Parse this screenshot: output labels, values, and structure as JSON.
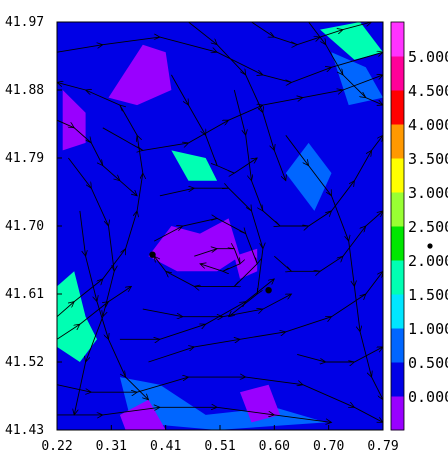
{
  "chart_data": {
    "type": "heatmap",
    "title": "",
    "xlabel": "",
    "ylabel": "",
    "x_ticks": [
      "0.22",
      "0.31",
      "0.41",
      "0.51",
      "0.60",
      "0.70",
      "0.79"
    ],
    "y_ticks": [
      "41.97",
      "41.88",
      "41.79",
      "41.70",
      "41.61",
      "41.52",
      "41.43"
    ],
    "xlim": [
      0.22,
      0.79
    ],
    "ylim": [
      41.43,
      41.97
    ],
    "grid": false,
    "legend": "colorbar-right",
    "colorbar": {
      "levels": [
        0.0,
        0.5,
        1.0,
        1.5,
        2.0,
        2.5,
        3.0,
        3.5,
        4.0,
        4.5,
        5.0
      ],
      "tick_labels": [
        "0.000",
        "0.500",
        "1.000",
        "1.500",
        "2.000",
        "2.500",
        "3.000",
        "3.500",
        "4.000",
        "4.500",
        "5.000"
      ],
      "colors": [
        "#9900ff",
        "#0000e6",
        "#0066ff",
        "#00e6ff",
        "#00ffb3",
        "#00e600",
        "#99ff33",
        "#ffff00",
        "#ff9900",
        "#ff0000",
        "#ff0099",
        "#ff33ff"
      ]
    },
    "contour_fill": {
      "background_level": 1,
      "regions": [
        {
          "level": 1,
          "polygon": [
            [
              0.23,
              41.97
            ],
            [
              0.58,
              41.97
            ],
            [
              0.55,
              41.9
            ],
            [
              0.47,
              41.82
            ],
            [
              0.36,
              41.87
            ],
            [
              0.28,
              41.86
            ],
            [
              0.22,
              41.92
            ]
          ]
        },
        {
          "level": 0,
          "polygon": [
            [
              0.31,
              41.87
            ],
            [
              0.37,
              41.94
            ],
            [
              0.41,
              41.93
            ],
            [
              0.42,
              41.88
            ],
            [
              0.36,
              41.86
            ]
          ]
        },
        {
          "level": 0,
          "polygon": [
            [
              0.23,
              41.88
            ],
            [
              0.27,
              41.85
            ],
            [
              0.27,
              41.81
            ],
            [
              0.23,
              41.8
            ]
          ]
        },
        {
          "level": 1,
          "polygon": [
            [
              0.36,
              41.78
            ],
            [
              0.45,
              41.73
            ],
            [
              0.51,
              41.74
            ],
            [
              0.53,
              41.7
            ],
            [
              0.45,
              41.68
            ],
            [
              0.38,
              41.69
            ],
            [
              0.33,
              41.72
            ]
          ]
        },
        {
          "level": 0,
          "polygon": [
            [
              0.38,
              41.66
            ],
            [
              0.42,
              41.7
            ],
            [
              0.47,
              41.69
            ],
            [
              0.52,
              41.71
            ],
            [
              0.54,
              41.66
            ],
            [
              0.5,
              41.64
            ],
            [
              0.43,
              41.64
            ]
          ]
        },
        {
          "level": 0,
          "polygon": [
            [
              0.53,
              41.66
            ],
            [
              0.57,
              41.67
            ],
            [
              0.57,
              41.64
            ],
            [
              0.54,
              41.63
            ]
          ]
        },
        {
          "level": 1,
          "polygon": [
            [
              0.62,
              41.66
            ],
            [
              0.7,
              41.67
            ],
            [
              0.73,
              41.62
            ],
            [
              0.7,
              41.58
            ],
            [
              0.64,
              41.59
            ]
          ]
        },
        {
          "level": 1,
          "polygon": [
            [
              0.22,
              41.61
            ],
            [
              0.27,
              41.66
            ],
            [
              0.3,
              41.6
            ],
            [
              0.29,
              41.54
            ],
            [
              0.22,
              41.5
            ]
          ]
        },
        {
          "level": 4,
          "polygon": [
            [
              0.22,
              41.62
            ],
            [
              0.25,
              41.64
            ],
            [
              0.27,
              41.58
            ],
            [
              0.29,
              41.55
            ],
            [
              0.26,
              41.52
            ],
            [
              0.22,
              41.54
            ]
          ]
        },
        {
          "level": 4,
          "polygon": [
            [
              0.42,
              41.8
            ],
            [
              0.48,
              41.79
            ],
            [
              0.5,
              41.76
            ],
            [
              0.45,
              41.76
            ]
          ]
        },
        {
          "level": 4,
          "polygon": [
            [
              0.68,
              41.96
            ],
            [
              0.75,
              41.97
            ],
            [
              0.79,
              41.93
            ],
            [
              0.74,
              41.92
            ]
          ]
        },
        {
          "level": 1,
          "polygon": [
            [
              0.22,
              41.52
            ],
            [
              0.34,
              41.49
            ],
            [
              0.42,
              41.5
            ],
            [
              0.5,
              41.47
            ],
            [
              0.56,
              41.5
            ],
            [
              0.66,
              41.48
            ],
            [
              0.76,
              41.44
            ],
            [
              0.79,
              41.43
            ],
            [
              0.22,
              41.43
            ]
          ]
        },
        {
          "level": 2,
          "polygon": [
            [
              0.33,
              41.5
            ],
            [
              0.4,
              41.49
            ],
            [
              0.48,
              41.45
            ],
            [
              0.6,
              41.46
            ],
            [
              0.69,
              41.44
            ],
            [
              0.5,
              41.43
            ],
            [
              0.35,
              41.44
            ]
          ]
        },
        {
          "level": 2,
          "polygon": [
            [
              0.62,
              41.77
            ],
            [
              0.66,
              41.81
            ],
            [
              0.7,
              41.77
            ],
            [
              0.67,
              41.72
            ]
          ]
        },
        {
          "level": 2,
          "polygon": [
            [
              0.7,
              41.93
            ],
            [
              0.76,
              41.91
            ],
            [
              0.79,
              41.87
            ],
            [
              0.73,
              41.86
            ]
          ]
        },
        {
          "level": 0,
          "polygon": [
            [
              0.33,
              41.45
            ],
            [
              0.38,
              41.47
            ],
            [
              0.41,
              41.43
            ],
            [
              0.34,
              41.43
            ]
          ]
        },
        {
          "level": 0,
          "polygon": [
            [
              0.54,
              41.48
            ],
            [
              0.59,
              41.49
            ],
            [
              0.61,
              41.45
            ],
            [
              0.56,
              41.44
            ]
          ]
        },
        {
          "level": 1,
          "polygon": [
            [
              0.72,
              41.82
            ],
            [
              0.79,
              41.84
            ],
            [
              0.79,
              41.72
            ],
            [
              0.74,
              41.74
            ]
          ]
        }
      ]
    },
    "markers": [
      {
        "x": 0.387,
        "y": 41.662
      },
      {
        "x": 0.59,
        "y": 41.615
      }
    ],
    "streamlines": [
      [
        [
          0.22,
          41.58
        ],
        [
          0.25,
          41.6
        ],
        [
          0.3,
          41.63
        ],
        [
          0.34,
          41.67
        ],
        [
          0.36,
          41.72
        ],
        [
          0.37,
          41.77
        ],
        [
          0.36,
          41.82
        ],
        [
          0.33,
          41.86
        ],
        [
          0.27,
          41.88
        ],
        [
          0.22,
          41.89
        ]
      ],
      [
        [
          0.22,
          41.55
        ],
        [
          0.26,
          41.57
        ],
        [
          0.31,
          41.6
        ],
        [
          0.35,
          41.62
        ]
      ],
      [
        [
          0.22,
          41.49
        ],
        [
          0.28,
          41.48
        ],
        [
          0.36,
          41.48
        ],
        [
          0.45,
          41.5
        ],
        [
          0.55,
          41.5
        ],
        [
          0.65,
          41.49
        ],
        [
          0.74,
          41.46
        ],
        [
          0.79,
          41.44
        ]
      ],
      [
        [
          0.22,
          41.45
        ],
        [
          0.3,
          41.45
        ],
        [
          0.4,
          41.46
        ],
        [
          0.5,
          41.46
        ],
        [
          0.6,
          41.45
        ],
        [
          0.7,
          41.44
        ]
      ],
      [
        [
          0.38,
          41.52
        ],
        [
          0.46,
          41.54
        ],
        [
          0.54,
          41.55
        ],
        [
          0.62,
          41.56
        ],
        [
          0.7,
          41.58
        ],
        [
          0.76,
          41.61
        ],
        [
          0.79,
          41.64
        ]
      ],
      [
        [
          0.37,
          41.59
        ],
        [
          0.44,
          41.58
        ],
        [
          0.51,
          41.58
        ],
        [
          0.58,
          41.59
        ],
        [
          0.63,
          41.61
        ]
      ],
      [
        [
          0.39,
          41.68
        ],
        [
          0.44,
          41.7
        ],
        [
          0.5,
          41.71
        ],
        [
          0.55,
          41.69
        ],
        [
          0.57,
          41.65
        ],
        [
          0.53,
          41.62
        ],
        [
          0.46,
          41.62
        ],
        [
          0.41,
          41.64
        ],
        [
          0.39,
          41.66
        ]
      ],
      [
        [
          0.4,
          41.74
        ],
        [
          0.46,
          41.75
        ],
        [
          0.52,
          41.75
        ],
        [
          0.56,
          41.72
        ],
        [
          0.58,
          41.67
        ],
        [
          0.57,
          41.61
        ],
        [
          0.52,
          41.58
        ]
      ],
      [
        [
          0.22,
          41.93
        ],
        [
          0.3,
          41.94
        ],
        [
          0.4,
          41.95
        ],
        [
          0.5,
          41.93
        ],
        [
          0.58,
          41.9
        ],
        [
          0.63,
          41.89
        ],
        [
          0.7,
          41.91
        ],
        [
          0.79,
          41.93
        ]
      ],
      [
        [
          0.3,
          41.83
        ],
        [
          0.37,
          41.8
        ],
        [
          0.45,
          41.81
        ],
        [
          0.52,
          41.84
        ],
        [
          0.58,
          41.86
        ],
        [
          0.65,
          41.87
        ],
        [
          0.72,
          41.88
        ],
        [
          0.79,
          41.9
        ]
      ],
      [
        [
          0.24,
          41.79
        ],
        [
          0.28,
          41.75
        ],
        [
          0.31,
          41.7
        ],
        [
          0.32,
          41.64
        ],
        [
          0.3,
          41.58
        ],
        [
          0.27,
          41.52
        ],
        [
          0.25,
          41.45
        ]
      ],
      [
        [
          0.53,
          41.88
        ],
        [
          0.55,
          41.82
        ],
        [
          0.56,
          41.76
        ],
        [
          0.58,
          41.72
        ],
        [
          0.61,
          41.7
        ],
        [
          0.66,
          41.7
        ],
        [
          0.7,
          41.72
        ],
        [
          0.74,
          41.76
        ],
        [
          0.77,
          41.8
        ],
        [
          0.79,
          41.82
        ]
      ],
      [
        [
          0.6,
          41.66
        ],
        [
          0.63,
          41.64
        ],
        [
          0.68,
          41.64
        ],
        [
          0.72,
          41.66
        ],
        [
          0.76,
          41.7
        ],
        [
          0.79,
          41.72
        ]
      ],
      [
        [
          0.62,
          41.82
        ],
        [
          0.66,
          41.78
        ],
        [
          0.7,
          41.74
        ],
        [
          0.73,
          41.68
        ],
        [
          0.74,
          41.62
        ],
        [
          0.75,
          41.56
        ],
        [
          0.77,
          41.5
        ],
        [
          0.79,
          41.47
        ]
      ],
      [
        [
          0.45,
          41.97
        ],
        [
          0.5,
          41.94
        ],
        [
          0.55,
          41.9
        ],
        [
          0.58,
          41.85
        ],
        [
          0.6,
          41.8
        ],
        [
          0.62,
          41.76
        ]
      ],
      [
        [
          0.66,
          41.97
        ],
        [
          0.69,
          41.94
        ],
        [
          0.72,
          41.9
        ],
        [
          0.76,
          41.87
        ],
        [
          0.79,
          41.86
        ]
      ],
      [
        [
          0.26,
          41.72
        ],
        [
          0.27,
          41.66
        ],
        [
          0.29,
          41.6
        ],
        [
          0.31,
          41.55
        ],
        [
          0.34,
          41.5
        ],
        [
          0.38,
          41.47
        ]
      ],
      [
        [
          0.42,
          41.9
        ],
        [
          0.45,
          41.86
        ],
        [
          0.48,
          41.82
        ],
        [
          0.5,
          41.78
        ],
        [
          0.53,
          41.77
        ],
        [
          0.57,
          41.79
        ]
      ],
      [
        [
          0.33,
          41.55
        ],
        [
          0.4,
          41.55
        ],
        [
          0.48,
          41.57
        ],
        [
          0.55,
          41.6
        ],
        [
          0.6,
          41.63
        ]
      ],
      [
        [
          0.64,
          41.53
        ],
        [
          0.69,
          41.52
        ],
        [
          0.74,
          41.52
        ],
        [
          0.79,
          41.54
        ]
      ],
      [
        [
          0.22,
          41.84
        ],
        [
          0.25,
          41.83
        ],
        [
          0.28,
          41.81
        ],
        [
          0.3,
          41.78
        ],
        [
          0.33,
          41.76
        ],
        [
          0.36,
          41.74
        ]
      ],
      [
        [
          0.46,
          41.66
        ],
        [
          0.5,
          41.67
        ],
        [
          0.53,
          41.67
        ],
        [
          0.54,
          41.65
        ],
        [
          0.51,
          41.64
        ],
        [
          0.47,
          41.65
        ]
      ],
      [
        [
          0.56,
          41.97
        ],
        [
          0.6,
          41.95
        ],
        [
          0.64,
          41.94
        ],
        [
          0.68,
          41.95
        ],
        [
          0.72,
          41.96
        ],
        [
          0.77,
          41.97
        ]
      ]
    ]
  }
}
